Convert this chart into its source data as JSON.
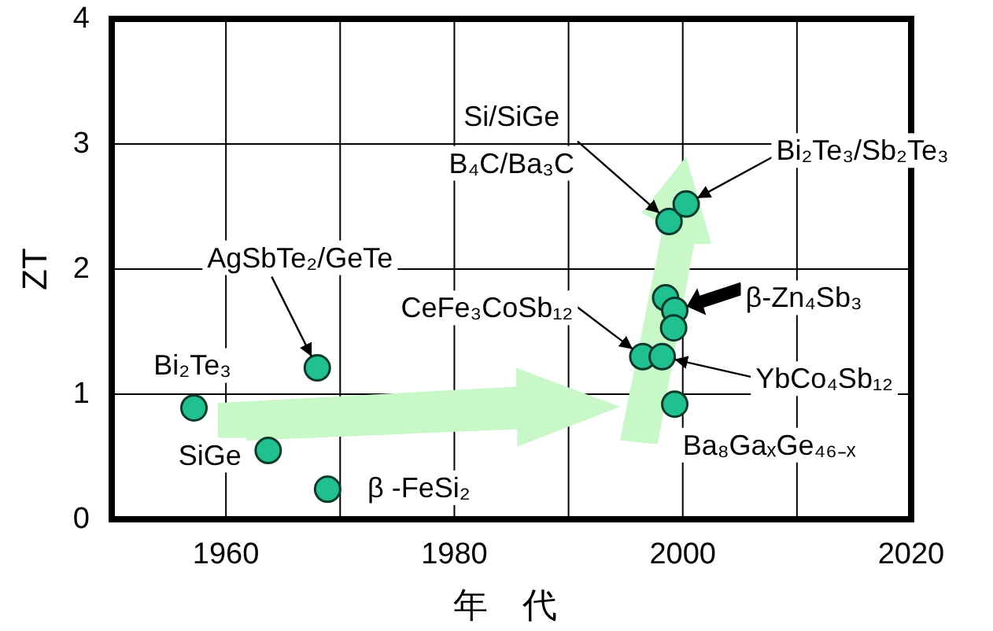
{
  "chart_data": {
    "type": "scatter",
    "xlabel": "年　代",
    "ylabel": "ZT",
    "xlim": [
      1950,
      2020
    ],
    "ylim": [
      0,
      4
    ],
    "xticks": [
      1960,
      {
        "value": 1970,
        "label": null
      },
      1980,
      {
        "value": 1990,
        "label": null
      },
      2000,
      {
        "value": 2010,
        "label": null
      },
      2020
    ],
    "yticks": [
      0,
      1,
      2,
      3,
      4
    ],
    "grid": true,
    "marker": "circle",
    "series": [
      {
        "color": "#20c090",
        "x": [
          1957.2,
          1963.7,
          1968.0,
          1968.9,
          1998.8,
          2000.3,
          1998.5,
          1999.3,
          1999.2,
          1996.5,
          1998.2,
          1999.3
        ],
        "values": [
          0.89,
          0.55,
          1.21,
          0.24,
          2.38,
          2.52,
          1.77,
          1.67,
          1.53,
          1.3,
          1.3,
          0.92
        ]
      }
    ],
    "annotations": [
      {
        "text": "Bi₂Te₃",
        "x": 1957.2,
        "y": 0.89
      },
      {
        "text": "SiGe",
        "x": 1963.7,
        "y": 0.55
      },
      {
        "text": "AgSbTe₂/GeTe",
        "x": 1968.0,
        "y": 1.21
      },
      {
        "text": "β -FeSi₂",
        "x": 1968.9,
        "y": 0.24
      },
      {
        "text": "Si/SiGe\nB₄C/Ba₃C",
        "x": 1998.8,
        "y": 2.38
      },
      {
        "text": "Bi₂Te₃/Sb₂Te₃",
        "x": 2000.3,
        "y": 2.52
      },
      {
        "text": "β-Zn₄Sb₃",
        "x": 1999.3,
        "y": 1.67
      },
      {
        "text": "CeFe₃CoSb₁₂",
        "x": 1996.5,
        "y": 1.3
      },
      {
        "text": "YbCo₄Sb₁₂",
        "x": 1998.2,
        "y": 1.3
      },
      {
        "text": "Ba₈GaₓGe₄₆₋ₓ",
        "x": 1999.3,
        "y": 0.92
      }
    ]
  }
}
